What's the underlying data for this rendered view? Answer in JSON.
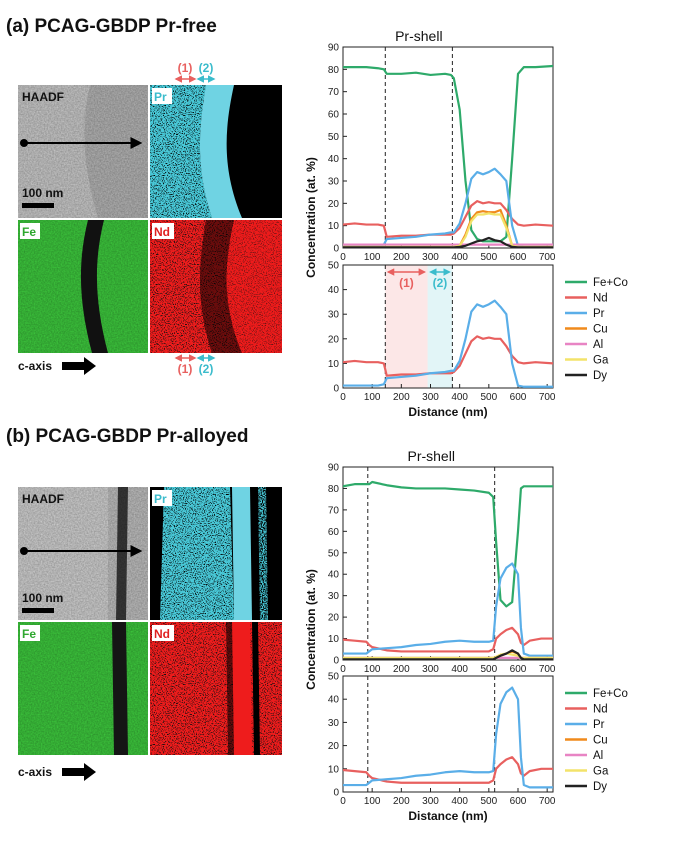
{
  "panels": [
    {
      "title": "(a) PCAG-GBDP Pr-free",
      "map_labels": [
        "HAADF",
        "Pr",
        "Fe",
        "Nd"
      ],
      "scale_bar": "100 nm",
      "axis_arrow": "c-axis",
      "markers": [
        "(1)",
        "(2)"
      ]
    },
    {
      "title": "(b) PCAG-GBDP Pr-alloyed",
      "map_labels": [
        "HAADF",
        "Pr",
        "Fe",
        "Nd"
      ],
      "scale_bar": "100 nm",
      "axis_arrow": "c-axis"
    }
  ],
  "chart_data": [
    {
      "type": "line",
      "title": "Pr-shell",
      "ylabel": "Concentration (at. %)",
      "x": [
        0,
        40,
        80,
        120,
        140,
        150,
        200,
        250,
        300,
        350,
        370,
        380,
        400,
        420,
        440,
        460,
        480,
        500,
        520,
        540,
        560,
        580,
        600,
        620,
        660,
        720
      ],
      "series": [
        {
          "name": "Fe+Co",
          "color": "#2eaa6a",
          "values": [
            81,
            81,
            81,
            80.5,
            80,
            78,
            78,
            78.5,
            77.5,
            78,
            77.5,
            76,
            62,
            30,
            8,
            4,
            3,
            3,
            3,
            3,
            5,
            40,
            78,
            81,
            81,
            81.5
          ]
        },
        {
          "name": "Nd",
          "color": "#e8605f",
          "values": [
            10.5,
            11,
            10.5,
            10.5,
            10,
            5,
            5.5,
            5.5,
            6,
            6,
            6,
            6.5,
            9,
            14,
            19,
            21,
            20,
            20.5,
            20,
            20,
            17,
            13,
            10.5,
            10,
            10.5,
            10
          ]
        },
        {
          "name": "Pr",
          "color": "#5aaee8",
          "values": [
            1,
            1,
            1,
            1,
            1.5,
            4,
            4.5,
            5,
            6,
            6.5,
            7,
            7,
            11,
            20,
            31,
            34,
            33,
            34,
            35.5,
            33,
            30,
            10,
            1,
            0.5,
            0.5,
            0.5
          ]
        },
        {
          "name": "Cu",
          "color": "#f08a1c",
          "values": [
            0.3,
            0.3,
            0.3,
            0.3,
            0.3,
            0.3,
            0.3,
            0.3,
            0.3,
            0.3,
            0.3,
            0.3,
            1,
            6,
            13,
            16,
            16.5,
            16,
            16,
            17,
            10,
            1,
            0.3,
            0.3,
            0.3,
            0.3
          ]
        },
        {
          "name": "Al",
          "color": "#e884c4",
          "values": [
            1.5,
            1.5,
            1.5,
            1.5,
            1.5,
            1.5,
            1.5,
            1.5,
            1.5,
            1.5,
            1.5,
            1.5,
            1.5,
            1.5,
            1.5,
            1.5,
            1.5,
            1.5,
            1.5,
            1.5,
            1.5,
            1.5,
            1.5,
            1.5,
            1.5,
            1.5
          ]
        },
        {
          "name": "Ga",
          "color": "#f3e36a",
          "values": [
            0.5,
            0.5,
            0.5,
            0.5,
            0.5,
            0.5,
            0.5,
            0.5,
            0.5,
            0.5,
            0.5,
            0.5,
            1,
            5,
            12,
            15,
            15,
            15.5,
            15,
            15,
            9,
            1,
            0.5,
            0.5,
            0.5,
            0.5
          ]
        },
        {
          "name": "Dy",
          "color": "#222222",
          "values": [
            0.3,
            0.3,
            0.3,
            0.3,
            0.3,
            0.3,
            0.3,
            0.3,
            0.3,
            0.3,
            0.3,
            0.3,
            0.5,
            1,
            2,
            3,
            3.5,
            4.5,
            3.5,
            3,
            1.5,
            0.5,
            0.3,
            0.3,
            0.3,
            0.3
          ]
        }
      ],
      "xlim": [
        0,
        720
      ],
      "xticks": [
        0,
        100,
        200,
        300,
        400,
        500,
        600,
        700
      ],
      "ylim": [
        0,
        90
      ],
      "yticks": [
        0,
        10,
        20,
        30,
        40,
        50,
        60,
        70,
        80,
        90
      ],
      "vlines": [
        145,
        375
      ]
    },
    {
      "type": "line",
      "xlabel": "Distance (nm)",
      "x": [
        0,
        40,
        80,
        120,
        140,
        150,
        200,
        250,
        300,
        350,
        370,
        380,
        400,
        420,
        440,
        460,
        480,
        500,
        520,
        540,
        560,
        580,
        600,
        620,
        660,
        720
      ],
      "series": [
        {
          "name": "Nd",
          "color": "#e8605f",
          "values": [
            10.5,
            11,
            10.5,
            10.5,
            10,
            5,
            5.5,
            5.5,
            6,
            6,
            6,
            6.5,
            9,
            14,
            19,
            21,
            20,
            20.5,
            20,
            20,
            17,
            13,
            10.5,
            10,
            10.5,
            10
          ]
        },
        {
          "name": "Pr",
          "color": "#5aaee8",
          "values": [
            1,
            1,
            1,
            1,
            1.5,
            4,
            4.5,
            5,
            6,
            6.5,
            7,
            7,
            11,
            20,
            31,
            34,
            33,
            34,
            35.5,
            33,
            30,
            10,
            1,
            0.5,
            0.5,
            0.5
          ]
        }
      ],
      "xlim": [
        0,
        720
      ],
      "xticks": [
        0,
        100,
        200,
        300,
        400,
        500,
        600,
        700
      ],
      "ylim": [
        0,
        50
      ],
      "yticks": [
        0,
        10,
        20,
        30,
        40,
        50
      ],
      "vlines": [
        145,
        375
      ],
      "regions": [
        {
          "label": "(1)",
          "range": [
            145,
            290
          ],
          "color": "#e8605f"
        },
        {
          "label": "(2)",
          "range": [
            290,
            375
          ],
          "color": "#3bbccc"
        }
      ]
    },
    {
      "type": "line",
      "title": "Pr-shell",
      "ylabel": "Concentration (at. %)",
      "x": [
        0,
        40,
        80,
        90,
        100,
        150,
        200,
        250,
        300,
        350,
        400,
        450,
        500,
        515,
        525,
        540,
        560,
        580,
        600,
        610,
        620,
        640,
        680,
        720
      ],
      "series": [
        {
          "name": "Fe+Co",
          "color": "#2eaa6a",
          "values": [
            81,
            82,
            82,
            82,
            83,
            81.5,
            80.5,
            80,
            80,
            80,
            79.5,
            79,
            78,
            76,
            55,
            28,
            25,
            27,
            60,
            80,
            81,
            81,
            81,
            81
          ]
        },
        {
          "name": "Nd",
          "color": "#e8605f",
          "values": [
            9.5,
            9,
            8.5,
            7,
            6,
            4.5,
            4,
            4,
            4,
            4,
            4,
            4,
            4,
            5,
            10,
            12,
            14,
            15,
            12,
            8,
            7,
            9,
            10,
            10
          ]
        },
        {
          "name": "Pr",
          "color": "#5aaee8",
          "values": [
            3,
            3,
            3,
            4,
            5,
            5.5,
            6,
            7,
            7.5,
            8.5,
            9,
            8.5,
            8.5,
            9,
            25,
            38,
            43,
            45,
            40,
            15,
            3,
            2,
            2,
            2
          ]
        },
        {
          "name": "Cu",
          "color": "#f08a1c",
          "values": [
            0.5,
            0.5,
            0.5,
            0.5,
            0.5,
            0.5,
            0.5,
            0.5,
            0.5,
            0.5,
            0.5,
            0.5,
            0.5,
            0.5,
            1,
            2,
            3,
            4,
            3,
            1,
            0.5,
            0.5,
            0.5,
            0.5
          ]
        },
        {
          "name": "Al",
          "color": "#e884c4",
          "values": [
            1,
            1,
            1,
            1,
            1,
            1,
            1,
            1,
            1,
            1,
            1,
            1,
            1,
            1,
            1,
            1,
            1,
            1,
            1,
            1,
            1,
            1,
            1,
            1
          ]
        },
        {
          "name": "Ga",
          "color": "#f3e36a",
          "values": [
            1,
            1,
            1,
            1,
            1,
            1,
            1,
            1,
            1,
            1,
            1,
            1,
            1,
            1,
            1.5,
            2.5,
            3,
            2.5,
            2,
            1,
            1,
            1,
            1,
            1
          ]
        },
        {
          "name": "Dy",
          "color": "#222222",
          "values": [
            0.3,
            0.3,
            0.3,
            0.3,
            0.3,
            0.3,
            0.3,
            0.3,
            0.3,
            0.3,
            0.3,
            0.3,
            0.3,
            0.3,
            1,
            2,
            3,
            4.5,
            3,
            1,
            0.3,
            0.3,
            0.3,
            0.3
          ]
        }
      ],
      "xlim": [
        0,
        720
      ],
      "xticks": [
        0,
        100,
        200,
        300,
        400,
        500,
        600,
        700
      ],
      "ylim": [
        0,
        90
      ],
      "yticks": [
        0,
        10,
        20,
        30,
        40,
        50,
        60,
        70,
        80,
        90
      ],
      "vlines": [
        85,
        520
      ]
    },
    {
      "type": "line",
      "xlabel": "Distance (nm)",
      "x": [
        0,
        40,
        80,
        90,
        100,
        150,
        200,
        250,
        300,
        350,
        400,
        450,
        500,
        515,
        525,
        540,
        560,
        580,
        600,
        610,
        620,
        640,
        680,
        720
      ],
      "series": [
        {
          "name": "Nd",
          "color": "#e8605f",
          "values": [
            9.5,
            9,
            8.5,
            7,
            6,
            4.5,
            4,
            4,
            4,
            4,
            4,
            4,
            4,
            5,
            10,
            12,
            14,
            15,
            12,
            8,
            7,
            9,
            10,
            10
          ]
        },
        {
          "name": "Pr",
          "color": "#5aaee8",
          "values": [
            3,
            3,
            3,
            4,
            5,
            5.5,
            6,
            7,
            7.5,
            8.5,
            9,
            8.5,
            8.5,
            9,
            25,
            38,
            43,
            45,
            40,
            15,
            3,
            2,
            2,
            2
          ]
        }
      ],
      "xlim": [
        0,
        720
      ],
      "xticks": [
        0,
        100,
        200,
        300,
        400,
        500,
        600,
        700
      ],
      "ylim": [
        0,
        50
      ],
      "yticks": [
        0,
        10,
        20,
        30,
        40,
        50
      ],
      "vlines": [
        85,
        520
      ]
    }
  ]
}
